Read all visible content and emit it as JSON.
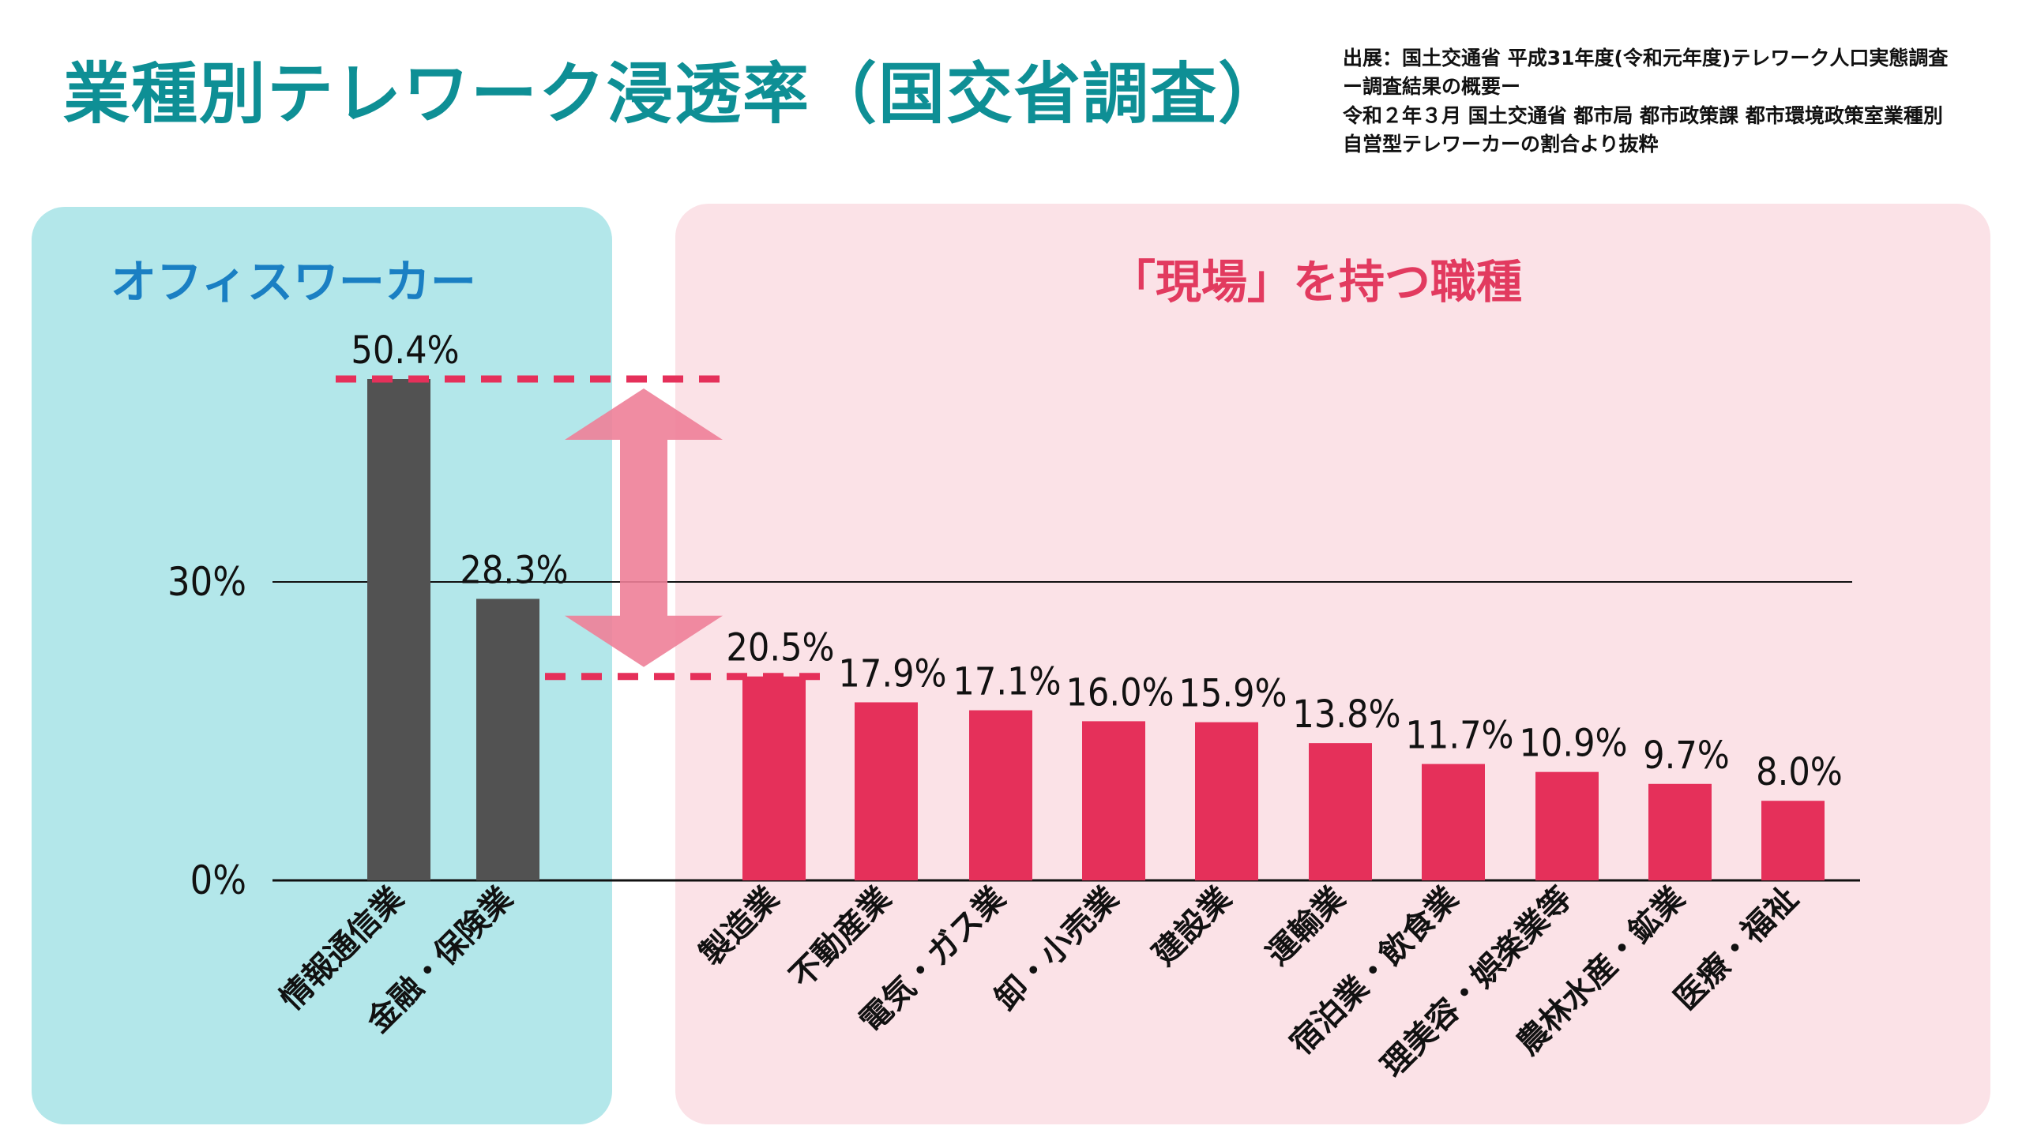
{
  "title": "業種別テレワーク浸透率（国交省調査）",
  "source": [
    "出展：国土交通省 平成31年度(令和元年度)テレワーク人口実態調査",
    "ー調査結果の概要ー",
    "令和２年３月 国土交通省 都市局 都市政策課 都市環境政策室業種別",
    "自営型テレワーカーの割合より抜粋"
  ],
  "groups": {
    "office": "オフィスワーカー",
    "field": "「現場」を持つ職種"
  },
  "colors": {
    "office_bar": "#525252",
    "field_bar": "#e5305a",
    "office_panel": "#b3e7ea",
    "field_panel": "#fbe2e7",
    "title": "#0e8f95",
    "office_label": "#1a7fc3",
    "field_label": "#e23a5f",
    "dashed_line": "#e5305a",
    "arrow": "#ee7f98"
  },
  "chart_data": {
    "type": "bar",
    "categories": [
      "情報通信業",
      "金融・保険業",
      "製造業",
      "不動産業",
      "電気・ガス業",
      "卸・小売業",
      "建設業",
      "運輸業",
      "宿泊業・飲食業",
      "理美容・娯楽業等",
      "農林水産・鉱業",
      "医療・福祉"
    ],
    "values": [
      50.4,
      28.3,
      20.5,
      17.9,
      17.1,
      16.0,
      15.9,
      13.8,
      11.7,
      10.9,
      9.7,
      8.0
    ],
    "value_labels": [
      "50.4%",
      "28.3%",
      "20.5%",
      "17.9%",
      "17.1%",
      "16.0%",
      "15.9%",
      "13.8%",
      "11.7%",
      "10.9%",
      "9.7%",
      "8.0%"
    ],
    "group": [
      "office",
      "office",
      "field",
      "field",
      "field",
      "field",
      "field",
      "field",
      "field",
      "field",
      "field",
      "field"
    ],
    "yticks": [
      0,
      30
    ],
    "ytick_labels": [
      "0%",
      "30%"
    ],
    "ylim": [
      0,
      50.4
    ],
    "reference_lines": [
      50.4,
      20.5
    ],
    "grid": false
  }
}
